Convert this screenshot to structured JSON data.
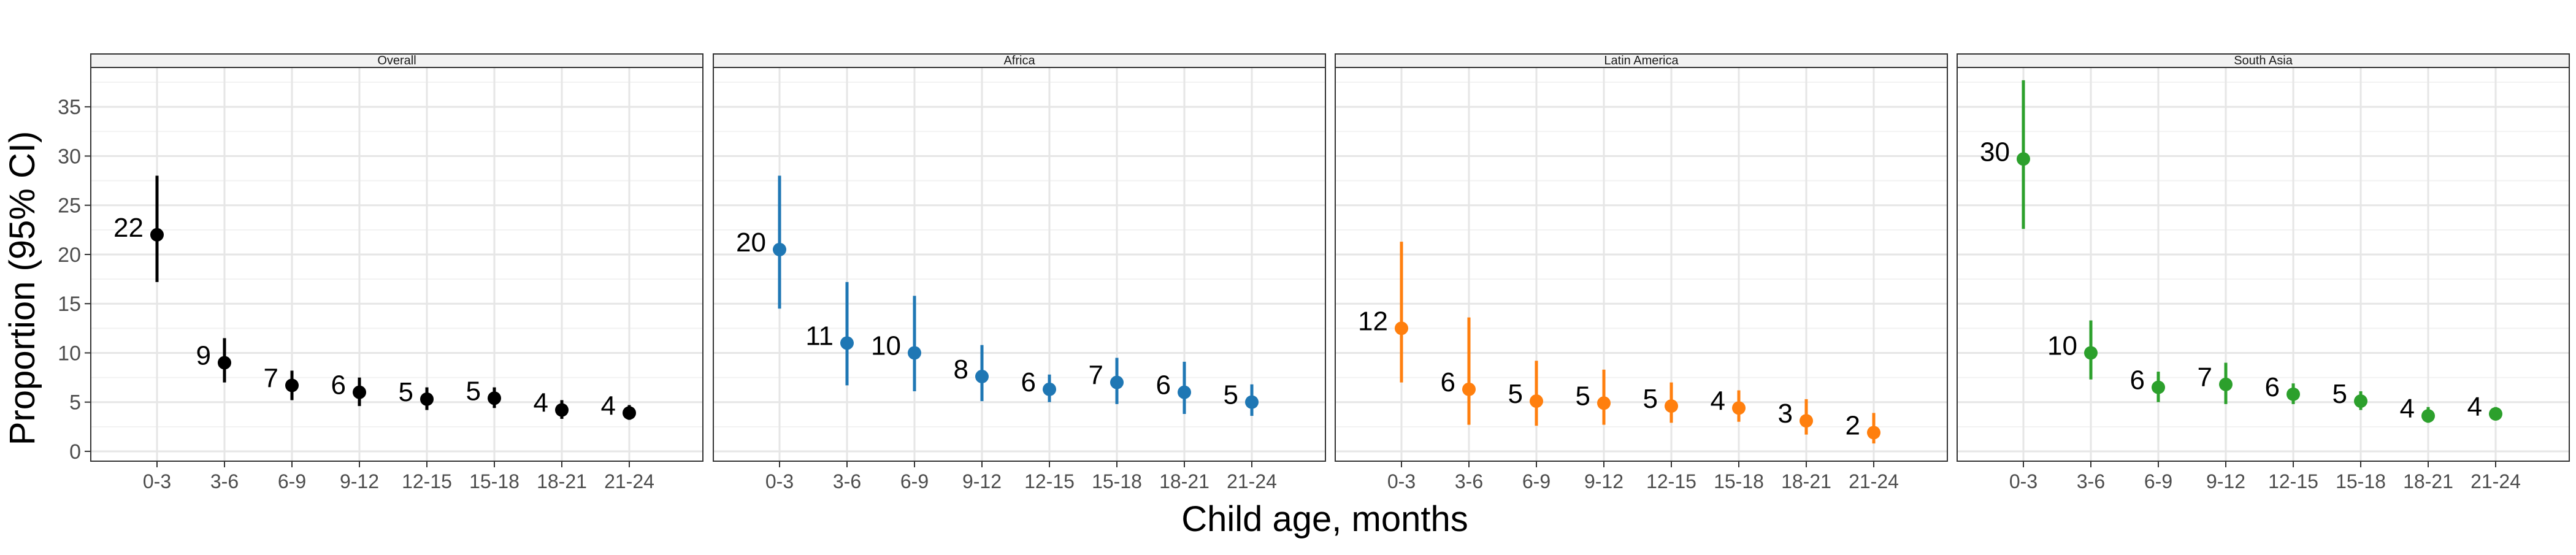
{
  "chart_data": {
    "type": "scatter",
    "xlabel": "Child age, months",
    "ylabel": "Proportion (95% CI)",
    "ylim": [
      -1,
      39
    ],
    "y_ticks": [
      0,
      5,
      10,
      15,
      20,
      25,
      30,
      35
    ],
    "categories": [
      "0-3",
      "3-6",
      "6-9",
      "9-12",
      "12-15",
      "15-18",
      "18-21",
      "21-24"
    ],
    "grid": true,
    "legend": "none",
    "panels": [
      {
        "title": "Overall",
        "color": "#000000",
        "points": [
          {
            "x": "0-3",
            "y": 22.0,
            "lo": 17.2,
            "hi": 28.0,
            "label": "22"
          },
          {
            "x": "3-6",
            "y": 9.0,
            "lo": 7.0,
            "hi": 11.5,
            "label": "9"
          },
          {
            "x": "6-9",
            "y": 6.7,
            "lo": 5.2,
            "hi": 8.2,
            "label": "7"
          },
          {
            "x": "9-12",
            "y": 6.0,
            "lo": 4.6,
            "hi": 7.5,
            "label": "6"
          },
          {
            "x": "12-15",
            "y": 5.3,
            "lo": 4.2,
            "hi": 6.5,
            "label": "5"
          },
          {
            "x": "15-18",
            "y": 5.4,
            "lo": 4.4,
            "hi": 6.5,
            "label": "5"
          },
          {
            "x": "18-21",
            "y": 4.2,
            "lo": 3.3,
            "hi": 5.2,
            "label": "4"
          },
          {
            "x": "21-24",
            "y": 3.9,
            "lo": 3.2,
            "hi": 4.7,
            "label": "4"
          }
        ]
      },
      {
        "title": "Africa",
        "color": "#1f77b4",
        "points": [
          {
            "x": "0-3",
            "y": 20.5,
            "lo": 14.5,
            "hi": 28.0,
            "label": "20"
          },
          {
            "x": "3-6",
            "y": 11.0,
            "lo": 6.7,
            "hi": 17.2,
            "label": "11"
          },
          {
            "x": "6-9",
            "y": 10.0,
            "lo": 6.1,
            "hi": 15.8,
            "label": "10"
          },
          {
            "x": "9-12",
            "y": 7.6,
            "lo": 5.1,
            "hi": 10.8,
            "label": "8"
          },
          {
            "x": "12-15",
            "y": 6.3,
            "lo": 5.0,
            "hi": 7.8,
            "label": "6"
          },
          {
            "x": "15-18",
            "y": 7.0,
            "lo": 4.8,
            "hi": 9.5,
            "label": "7"
          },
          {
            "x": "18-21",
            "y": 6.0,
            "lo": 3.8,
            "hi": 9.1,
            "label": "6"
          },
          {
            "x": "21-24",
            "y": 5.0,
            "lo": 3.6,
            "hi": 6.8,
            "label": "5"
          }
        ]
      },
      {
        "title": "Latin America",
        "color": "#ff7f0e",
        "points": [
          {
            "x": "0-3",
            "y": 12.5,
            "lo": 7.0,
            "hi": 21.3,
            "label": "12"
          },
          {
            "x": "3-6",
            "y": 6.3,
            "lo": 2.7,
            "hi": 13.6,
            "label": "6"
          },
          {
            "x": "6-9",
            "y": 5.1,
            "lo": 2.6,
            "hi": 9.2,
            "label": "5"
          },
          {
            "x": "9-12",
            "y": 4.9,
            "lo": 2.7,
            "hi": 8.3,
            "label": "5"
          },
          {
            "x": "12-15",
            "y": 4.6,
            "lo": 2.9,
            "hi": 7.0,
            "label": "5"
          },
          {
            "x": "15-18",
            "y": 4.4,
            "lo": 3.0,
            "hi": 6.2,
            "label": "4"
          },
          {
            "x": "18-21",
            "y": 3.1,
            "lo": 1.7,
            "hi": 5.3,
            "label": "3"
          },
          {
            "x": "21-24",
            "y": 1.9,
            "lo": 0.8,
            "hi": 3.9,
            "label": "2"
          }
        ]
      },
      {
        "title": "South Asia",
        "color": "#2ca02c",
        "points": [
          {
            "x": "0-3",
            "y": 29.7,
            "lo": 22.6,
            "hi": 37.7,
            "label": "30"
          },
          {
            "x": "3-6",
            "y": 10.0,
            "lo": 7.3,
            "hi": 13.3,
            "label": "10"
          },
          {
            "x": "6-9",
            "y": 6.5,
            "lo": 5.0,
            "hi": 8.1,
            "label": "6"
          },
          {
            "x": "9-12",
            "y": 6.8,
            "lo": 4.8,
            "hi": 9.0,
            "label": "7"
          },
          {
            "x": "12-15",
            "y": 5.8,
            "lo": 4.8,
            "hi": 6.9,
            "label": "6"
          },
          {
            "x": "15-18",
            "y": 5.1,
            "lo": 4.2,
            "hi": 6.1,
            "label": "5"
          },
          {
            "x": "18-21",
            "y": 3.6,
            "lo": 2.9,
            "hi": 4.5,
            "label": "4"
          },
          {
            "x": "21-24",
            "y": 3.8,
            "lo": 3.2,
            "hi": 4.5,
            "label": "4"
          }
        ]
      }
    ]
  }
}
